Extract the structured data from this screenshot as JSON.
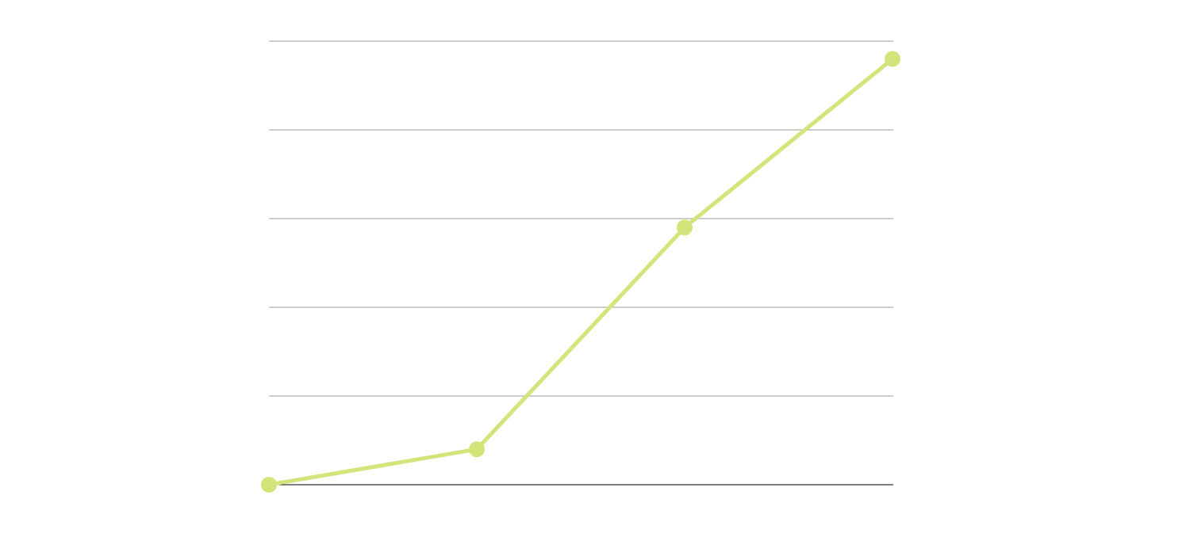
{
  "chart_data": {
    "type": "line",
    "categories": [
      null,
      null,
      null,
      null
    ],
    "series": [
      {
        "color": "#d3e47a",
        "values": [
          0,
          0.4,
          2.9,
          4.8
        ]
      }
    ],
    "ylim": [
      0,
      5
    ],
    "yticks": [
      0,
      1,
      2,
      3,
      4,
      5
    ],
    "grid": true
  }
}
